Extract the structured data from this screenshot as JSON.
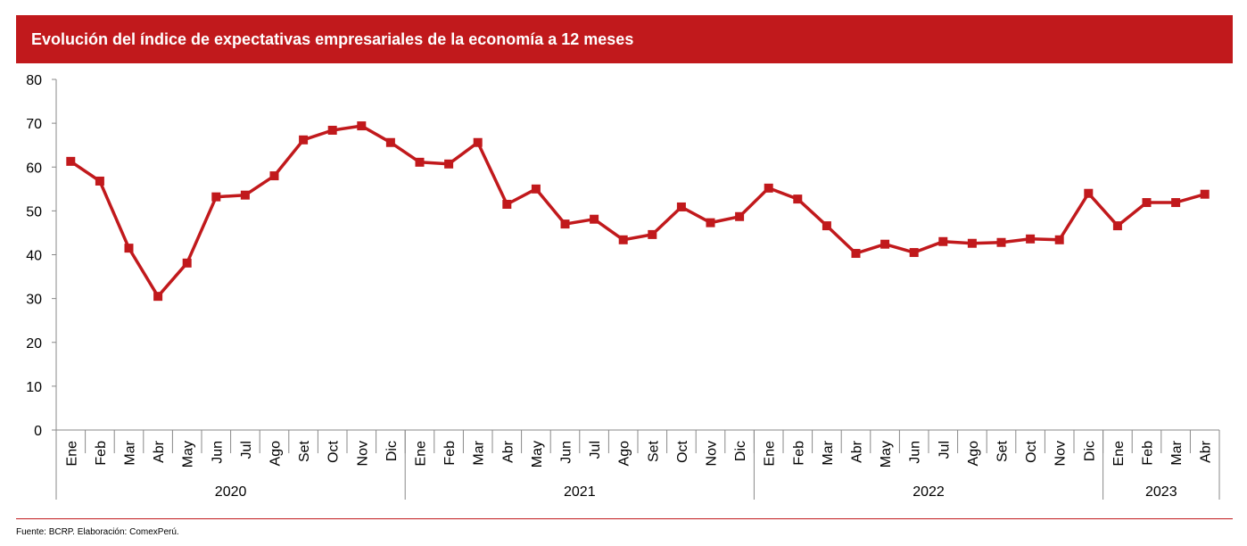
{
  "title": "Evolución del índice de expectativas empresariales de la economía a 12 meses",
  "footer": "Fuente: BCRP. Elaboración: ComexPerú.",
  "colors": {
    "accent": "#c1191c",
    "line": "#c1191c"
  },
  "chart_data": {
    "type": "line",
    "title": "Evolución del índice de expectativas empresariales de la economía a 12 meses",
    "xlabel": "",
    "ylabel": "",
    "ylim": [
      0,
      80
    ],
    "yticks": [
      0,
      10,
      20,
      30,
      40,
      50,
      60,
      70,
      80
    ],
    "grid": false,
    "categories": [
      "Ene",
      "Feb",
      "Mar",
      "Abr",
      "May",
      "Jun",
      "Jul",
      "Ago",
      "Set",
      "Oct",
      "Nov",
      "Dic",
      "Ene",
      "Feb",
      "Mar",
      "Abr",
      "May",
      "Jun",
      "Jul",
      "Ago",
      "Set",
      "Oct",
      "Nov",
      "Dic",
      "Ene",
      "Feb",
      "Mar",
      "Abr",
      "May",
      "Jun",
      "Jul",
      "Ago",
      "Set",
      "Oct",
      "Nov",
      "Dic",
      "Ene",
      "Feb",
      "Mar",
      "Abr"
    ],
    "years": [
      {
        "label": "2020",
        "count": 12
      },
      {
        "label": "2021",
        "count": 12
      },
      {
        "label": "2022",
        "count": 12
      },
      {
        "label": "2023",
        "count": 4
      }
    ],
    "series": [
      {
        "name": "Índice de expectativas empresariales a 12 meses",
        "values": [
          61.3,
          56.8,
          41.5,
          30.5,
          38.1,
          53.2,
          53.6,
          58.0,
          66.2,
          68.4,
          69.4,
          65.6,
          61.1,
          60.7,
          65.6,
          51.5,
          55.0,
          47.0,
          48.1,
          43.4,
          44.6,
          50.9,
          47.3,
          48.7,
          55.2,
          52.7,
          46.6,
          40.3,
          42.4,
          40.5,
          43.0,
          42.6,
          42.8,
          43.6,
          43.4,
          54.0,
          46.6,
          51.9,
          51.9,
          53.8
        ]
      }
    ]
  }
}
